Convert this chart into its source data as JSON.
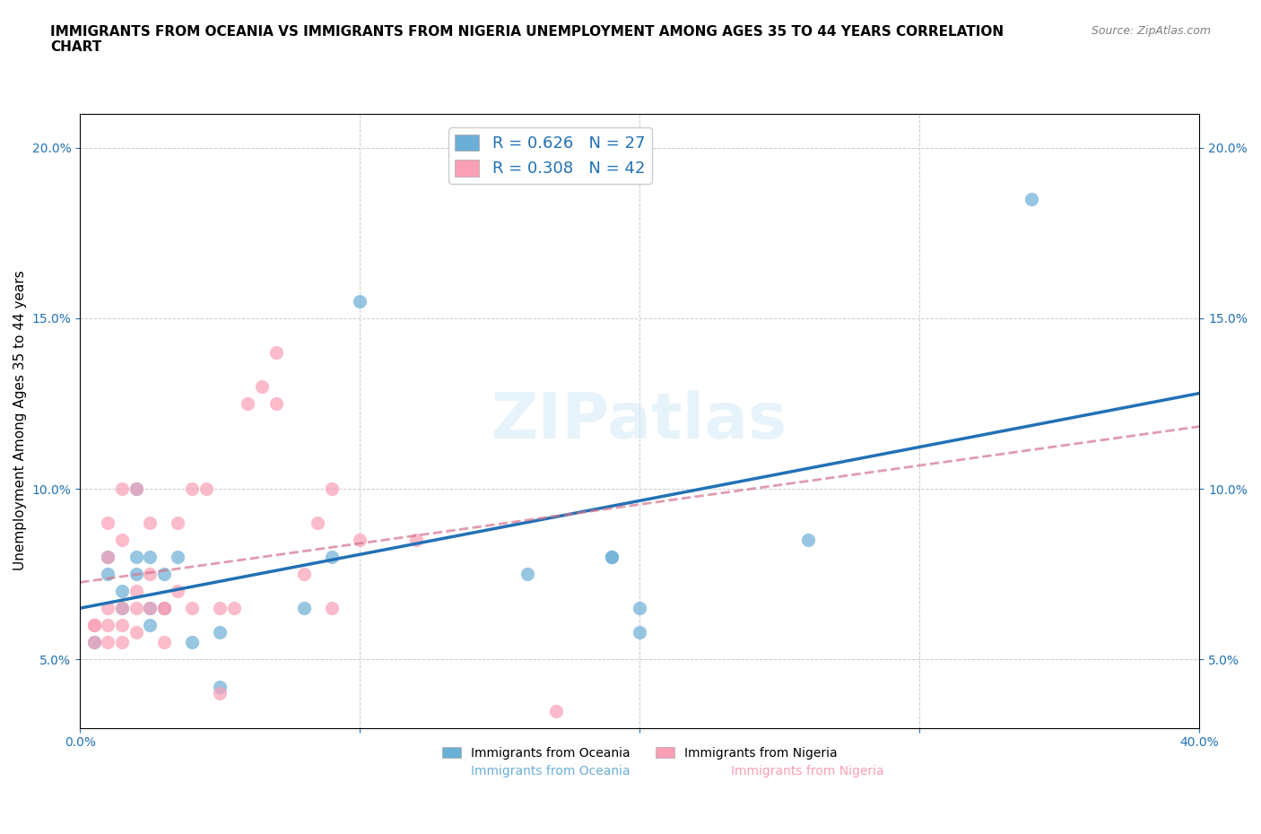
{
  "title": "IMMIGRANTS FROM OCEANIA VS IMMIGRANTS FROM NIGERIA UNEMPLOYMENT AMONG AGES 35 TO 44 YEARS CORRELATION\nCHART",
  "source": "Source: ZipAtlas.com",
  "xlabel": "",
  "ylabel": "Unemployment Among Ages 35 to 44 years",
  "xlim": [
    0.0,
    0.4
  ],
  "ylim": [
    0.03,
    0.21
  ],
  "xticks": [
    0.0,
    0.1,
    0.2,
    0.3,
    0.4
  ],
  "xticklabels": [
    "0.0%",
    "",
    "",
    "",
    "40.0%"
  ],
  "yticks": [
    0.05,
    0.1,
    0.15,
    0.2
  ],
  "yticklabels": [
    "5.0%",
    "10.0%",
    "15.0%",
    "20.0%"
  ],
  "background_color": "#ffffff",
  "watermark": "ZIPatlas",
  "legend_R_oceania": "R = 0.626",
  "legend_N_oceania": "N = 27",
  "legend_R_nigeria": "R = 0.308",
  "legend_N_nigeria": "N = 42",
  "oceania_color": "#6baed6",
  "nigeria_color": "#fa9fb5",
  "oceania_line_color": "#2171b5",
  "nigeria_line_color": "#fa9fb5",
  "oceania_scatter_x": [
    0.005,
    0.01,
    0.01,
    0.015,
    0.015,
    0.02,
    0.02,
    0.02,
    0.025,
    0.025,
    0.025,
    0.03,
    0.03,
    0.035,
    0.04,
    0.05,
    0.05,
    0.08,
    0.09,
    0.1,
    0.16,
    0.19,
    0.19,
    0.2,
    0.2,
    0.26,
    0.34
  ],
  "oceania_scatter_y": [
    0.055,
    0.075,
    0.08,
    0.065,
    0.07,
    0.075,
    0.08,
    0.1,
    0.06,
    0.065,
    0.08,
    0.065,
    0.075,
    0.08,
    0.055,
    0.058,
    0.042,
    0.065,
    0.08,
    0.155,
    0.075,
    0.08,
    0.08,
    0.058,
    0.065,
    0.085,
    0.185
  ],
  "nigeria_scatter_x": [
    0.005,
    0.005,
    0.005,
    0.01,
    0.01,
    0.01,
    0.01,
    0.01,
    0.015,
    0.015,
    0.015,
    0.015,
    0.015,
    0.02,
    0.02,
    0.02,
    0.02,
    0.025,
    0.025,
    0.025,
    0.03,
    0.03,
    0.03,
    0.035,
    0.035,
    0.04,
    0.04,
    0.045,
    0.05,
    0.05,
    0.055,
    0.06,
    0.065,
    0.07,
    0.07,
    0.08,
    0.085,
    0.09,
    0.09,
    0.1,
    0.12,
    0.17
  ],
  "nigeria_scatter_y": [
    0.055,
    0.06,
    0.06,
    0.055,
    0.06,
    0.065,
    0.08,
    0.09,
    0.055,
    0.06,
    0.065,
    0.085,
    0.1,
    0.058,
    0.065,
    0.07,
    0.1,
    0.065,
    0.075,
    0.09,
    0.055,
    0.065,
    0.065,
    0.07,
    0.09,
    0.065,
    0.1,
    0.1,
    0.04,
    0.065,
    0.065,
    0.125,
    0.13,
    0.125,
    0.14,
    0.075,
    0.09,
    0.065,
    0.1,
    0.085,
    0.085,
    0.035
  ],
  "grid_color": "#cccccc",
  "title_fontsize": 11,
  "axis_label_fontsize": 11,
  "tick_fontsize": 10,
  "legend_fontsize": 13
}
